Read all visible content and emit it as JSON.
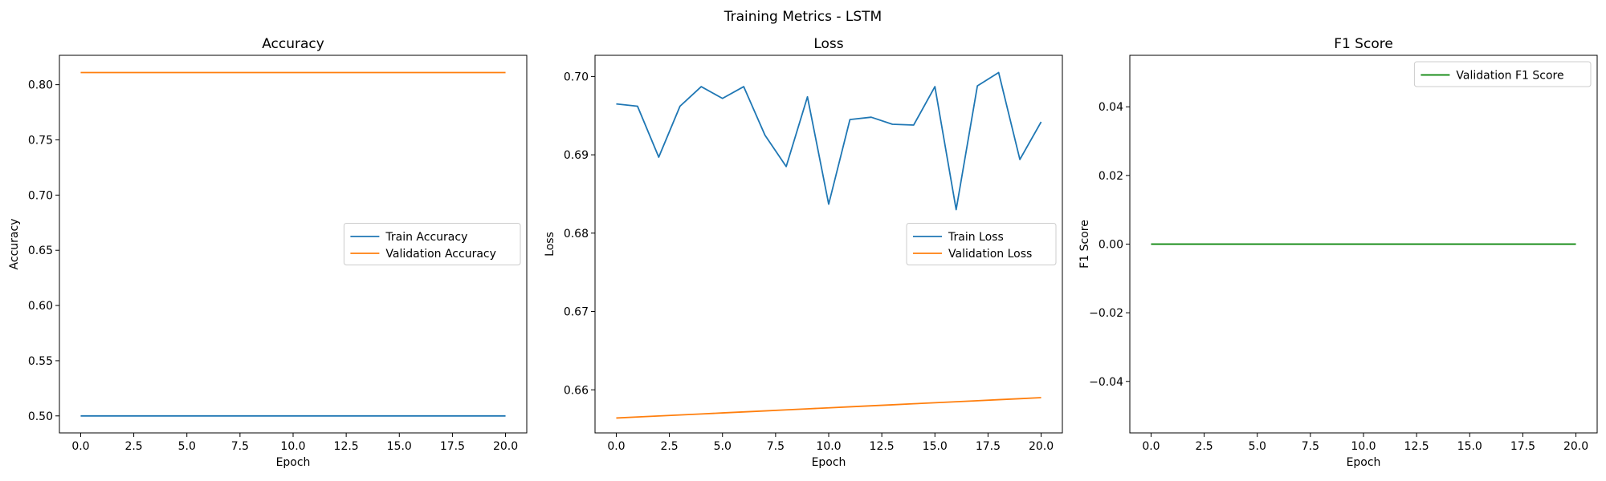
{
  "figure": {
    "suptitle": "Training Metrics - LSTM"
  },
  "colors": {
    "train": "#1f77b4",
    "validation": "#ff7f0e",
    "f1": "#008000"
  },
  "chart_data": [
    {
      "type": "line",
      "title": "Accuracy",
      "xlabel": "Epoch",
      "ylabel": "Accuracy",
      "xlim": [
        -1,
        21
      ],
      "ylim": [
        0.4846,
        0.8266
      ],
      "xticks": [
        0.0,
        2.5,
        5.0,
        7.5,
        10.0,
        12.5,
        15.0,
        17.5,
        20.0
      ],
      "xtick_labels": [
        "0.0",
        "2.5",
        "5.0",
        "7.5",
        "10.0",
        "12.5",
        "15.0",
        "17.5",
        "20.0"
      ],
      "yticks": [
        0.5,
        0.55,
        0.6,
        0.65,
        0.7,
        0.75,
        0.8
      ],
      "ytick_labels": [
        "0.50",
        "0.55",
        "0.60",
        "0.65",
        "0.70",
        "0.75",
        "0.80"
      ],
      "legend_position": "center-right",
      "x": [
        0,
        1,
        2,
        3,
        4,
        5,
        6,
        7,
        8,
        9,
        10,
        11,
        12,
        13,
        14,
        15,
        16,
        17,
        18,
        19,
        20
      ],
      "series": [
        {
          "name": "Train Accuracy",
          "color": "#1f77b4",
          "values": [
            0.5,
            0.5,
            0.5,
            0.5,
            0.5,
            0.5,
            0.5,
            0.5,
            0.5,
            0.5,
            0.5,
            0.5,
            0.5,
            0.5,
            0.5,
            0.5,
            0.5,
            0.5,
            0.5,
            0.5,
            0.5
          ]
        },
        {
          "name": "Validation Accuracy",
          "color": "#ff7f0e",
          "values": [
            0.811,
            0.811,
            0.811,
            0.811,
            0.811,
            0.811,
            0.811,
            0.811,
            0.811,
            0.811,
            0.811,
            0.811,
            0.811,
            0.811,
            0.811,
            0.811,
            0.811,
            0.811,
            0.811,
            0.811,
            0.811
          ]
        }
      ]
    },
    {
      "type": "line",
      "title": "Loss",
      "xlabel": "Epoch",
      "ylabel": "Loss",
      "xlim": [
        -1,
        21
      ],
      "ylim": [
        0.6545,
        0.7027
      ],
      "xticks": [
        0.0,
        2.5,
        5.0,
        7.5,
        10.0,
        12.5,
        15.0,
        17.5,
        20.0
      ],
      "xtick_labels": [
        "0.0",
        "2.5",
        "5.0",
        "7.5",
        "10.0",
        "12.5",
        "15.0",
        "17.5",
        "20.0"
      ],
      "yticks": [
        0.66,
        0.67,
        0.68,
        0.69,
        0.7
      ],
      "ytick_labels": [
        "0.66",
        "0.67",
        "0.68",
        "0.69",
        "0.70"
      ],
      "legend_position": "center-right",
      "x": [
        0,
        1,
        2,
        3,
        4,
        5,
        6,
        7,
        8,
        9,
        10,
        11,
        12,
        13,
        14,
        15,
        16,
        17,
        18,
        19,
        20
      ],
      "series": [
        {
          "name": "Train Loss",
          "color": "#1f77b4",
          "values": [
            0.6965,
            0.6962,
            0.6897,
            0.6962,
            0.6987,
            0.6972,
            0.6987,
            0.6925,
            0.6885,
            0.6974,
            0.6837,
            0.6945,
            0.6948,
            0.6939,
            0.6938,
            0.6987,
            0.683,
            0.6988,
            0.7005,
            0.6894,
            0.6942
          ]
        },
        {
          "name": "Validation Loss",
          "color": "#ff7f0e",
          "values": [
            0.6564,
            0.65653,
            0.65666,
            0.65679,
            0.65692,
            0.65705,
            0.65718,
            0.65731,
            0.65744,
            0.65757,
            0.6577,
            0.65783,
            0.65796,
            0.65809,
            0.65822,
            0.65835,
            0.65848,
            0.65861,
            0.65874,
            0.65887,
            0.659
          ]
        }
      ]
    },
    {
      "type": "line",
      "title": "F1 Score",
      "xlabel": "Epoch",
      "ylabel": "F1 Score",
      "xlim": [
        -1,
        21
      ],
      "ylim": [
        -0.055,
        0.055
      ],
      "xticks": [
        0.0,
        2.5,
        5.0,
        7.5,
        10.0,
        12.5,
        15.0,
        17.5,
        20.0
      ],
      "xtick_labels": [
        "0.0",
        "2.5",
        "5.0",
        "7.5",
        "10.0",
        "12.5",
        "15.0",
        "17.5",
        "20.0"
      ],
      "yticks": [
        -0.04,
        -0.02,
        0.0,
        0.02,
        0.04
      ],
      "ytick_labels": [
        "−0.04",
        "−0.02",
        "0.00",
        "0.02",
        "0.04"
      ],
      "legend_position": "top-right",
      "x": [
        0,
        1,
        2,
        3,
        4,
        5,
        6,
        7,
        8,
        9,
        10,
        11,
        12,
        13,
        14,
        15,
        16,
        17,
        18,
        19,
        20
      ],
      "series": [
        {
          "name": "Validation F1 Score",
          "color": "#008000",
          "values": [
            0,
            0,
            0,
            0,
            0,
            0,
            0,
            0,
            0,
            0,
            0,
            0,
            0,
            0,
            0,
            0,
            0,
            0,
            0,
            0,
            0
          ]
        }
      ]
    }
  ]
}
